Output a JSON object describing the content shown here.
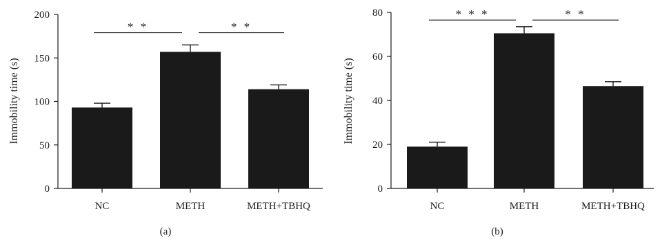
{
  "colors": {
    "bar": "#1a1a1a",
    "axis": "#1a1a1a"
  },
  "chart_data": [
    {
      "type": "bar",
      "panel_label": "(a)",
      "ylabel": "Immobility time (s)",
      "xlabel": "",
      "categories": [
        "NC",
        "METH",
        "METH+TBHQ"
      ],
      "values": [
        93,
        157,
        114
      ],
      "errors": [
        5,
        8,
        5
      ],
      "ylim": [
        0,
        200
      ],
      "yticks": [
        0,
        50,
        100,
        150,
        200
      ],
      "significance": [
        {
          "from": 0,
          "to": 1,
          "label": "* *",
          "y": 179
        },
        {
          "from": 1,
          "to": 2,
          "label": "* *",
          "y": 179
        }
      ]
    },
    {
      "type": "bar",
      "panel_label": "(b)",
      "ylabel": "Immobility time (s)",
      "xlabel": "",
      "categories": [
        "NC",
        "METH",
        "METH+TBHQ"
      ],
      "values": [
        19,
        70.5,
        46.5
      ],
      "errors": [
        2,
        3,
        2
      ],
      "ylim": [
        0,
        80
      ],
      "yticks": [
        0,
        20,
        40,
        60,
        80
      ],
      "significance": [
        {
          "from": 0,
          "to": 1,
          "label": "* * *",
          "y": 76.5
        },
        {
          "from": 1,
          "to": 2,
          "label": "* *",
          "y": 76.5
        }
      ]
    }
  ]
}
